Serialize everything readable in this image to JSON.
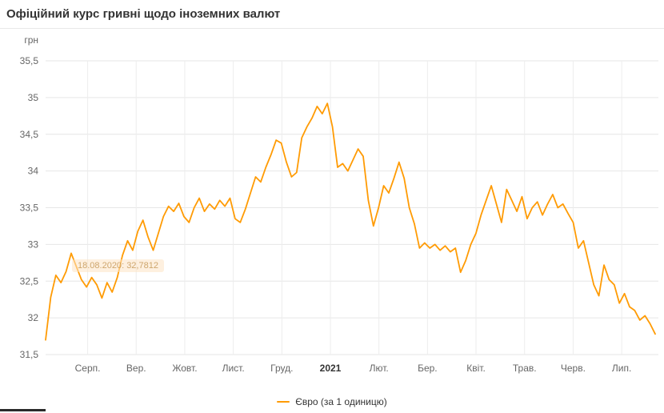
{
  "page": {
    "title": "Офіційний курс гривні щодо іноземних валют"
  },
  "tooltip": {
    "date": "18.08.2020",
    "separator": ": ",
    "value": "32,7812"
  },
  "legend": {
    "label": "Євро (за 1 одиницю)"
  },
  "chart_data": {
    "type": "line",
    "title": "Офіційний курс гривні щодо іноземних валют",
    "xlabel": "",
    "ylabel": "грн",
    "ylim": [
      31.5,
      35.5
    ],
    "y_tick_step": 0.5,
    "y_tick_labels": [
      "31,5",
      "32",
      "32,5",
      "33",
      "33,5",
      "34",
      "34,5",
      "35",
      "35,5"
    ],
    "x_ticks": [
      "Серп.",
      "Вер.",
      "Жовт.",
      "Лист.",
      "Груд.",
      "2021",
      "Лют.",
      "Бер.",
      "Квіт.",
      "Трав.",
      "Черв.",
      "Лип."
    ],
    "grid": true,
    "grid_color": "#e6e6e6",
    "axis_label_color": "#666666",
    "legend_position": "bottom",
    "series": [
      {
        "name": "Євро (за 1 одиницю)",
        "color": "#ff9b04",
        "values": [
          31.7,
          32.28,
          32.58,
          32.48,
          32.63,
          32.88,
          32.7,
          32.52,
          32.42,
          32.55,
          32.45,
          32.27,
          32.48,
          32.35,
          32.55,
          32.85,
          33.05,
          32.92,
          33.18,
          33.33,
          33.1,
          32.92,
          33.15,
          33.38,
          33.52,
          33.45,
          33.56,
          33.38,
          33.3,
          33.5,
          33.63,
          33.45,
          33.55,
          33.48,
          33.6,
          33.52,
          33.63,
          33.35,
          33.3,
          33.48,
          33.7,
          33.92,
          33.85,
          34.05,
          34.22,
          34.42,
          34.38,
          34.12,
          33.92,
          33.98,
          34.45,
          34.6,
          34.72,
          34.88,
          34.78,
          34.92,
          34.6,
          34.05,
          34.1,
          34.0,
          34.15,
          34.3,
          34.2,
          33.6,
          33.25,
          33.5,
          33.8,
          33.7,
          33.9,
          34.12,
          33.9,
          33.5,
          33.28,
          32.95,
          33.02,
          32.95,
          33.0,
          32.92,
          32.98,
          32.9,
          32.95,
          32.62,
          32.78,
          33.0,
          33.15,
          33.4,
          33.6,
          33.8,
          33.55,
          33.3,
          33.75,
          33.6,
          33.45,
          33.65,
          33.35,
          33.5,
          33.58,
          33.4,
          33.55,
          33.68,
          33.5,
          33.55,
          33.42,
          33.3,
          32.95,
          33.05,
          32.75,
          32.45,
          32.3,
          32.72,
          32.52,
          32.45,
          32.2,
          32.33,
          32.15,
          32.1,
          31.97,
          32.03,
          31.92,
          31.78
        ]
      }
    ]
  }
}
